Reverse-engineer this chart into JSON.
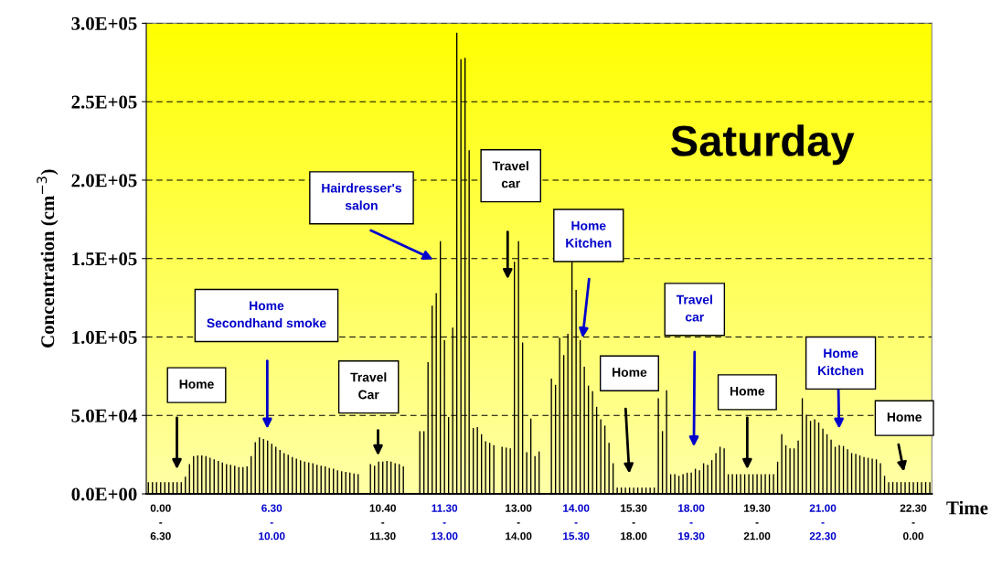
{
  "chart_data": {
    "type": "bar",
    "xlabel": "Time",
    "ylabel": "Concentration (cm$^{−3}$)",
    "categories": [
      null,
      null,
      null,
      "0.00\n-\n6.30",
      null,
      null,
      null,
      null,
      null,
      null,
      null,
      null,
      null,
      null,
      null,
      null,
      null,
      null,
      null,
      null,
      null,
      null,
      null,
      null,
      null,
      null,
      null,
      null,
      null,
      null,
      "6.30\n-\n10.00",
      null,
      null,
      null,
      null,
      null,
      null,
      null,
      null,
      null,
      null,
      null,
      null,
      null,
      null,
      null,
      null,
      null,
      null,
      null,
      null,
      null,
      null,
      null,
      null,
      null,
      null,
      "10.40\n-\n11.30",
      null,
      null,
      null,
      null,
      null,
      null,
      null,
      null,
      null,
      null,
      null,
      null,
      null,
      null,
      "11.30\n-\n13.00",
      null,
      null,
      null,
      null,
      null,
      null,
      null,
      null,
      null,
      null,
      null,
      null,
      null,
      null,
      null,
      null,
      null,
      "13.00\n-\n14.00",
      null,
      null,
      null,
      null,
      null,
      null,
      null,
      null,
      null,
      null,
      null,
      null,
      null,
      "14.00\n-\n15.30",
      null,
      null,
      null,
      null,
      null,
      null,
      null,
      null,
      null,
      null,
      null,
      null,
      null,
      "15.30\n-\n18.00",
      null,
      null,
      null,
      null,
      null,
      null,
      null,
      null,
      null,
      null,
      null,
      null,
      null,
      "18.00\n-\n19.30",
      null,
      null,
      null,
      null,
      null,
      null,
      null,
      null,
      null,
      null,
      null,
      null,
      null,
      null,
      null,
      "19.30\n-\n21.00",
      null,
      null,
      null,
      null,
      null,
      null,
      null,
      null,
      null,
      null,
      null,
      null,
      null,
      null,
      null,
      "21.00\n-\n22.30",
      null,
      null,
      null,
      null,
      null,
      null,
      null,
      null,
      null,
      null,
      null,
      null,
      null,
      null,
      null,
      null,
      null,
      null,
      null,
      null,
      null,
      "22.30\n-\n0.00",
      null,
      null,
      null,
      null
    ],
    "values": [
      7500,
      7500,
      7500,
      7500,
      7500,
      7500,
      7500,
      7500,
      7500,
      11000,
      19000,
      24000,
      24500,
      24500,
      24000,
      23000,
      22000,
      21000,
      20000,
      19000,
      18500,
      18000,
      17000,
      17000,
      17500,
      24000,
      33000,
      36000,
      35000,
      34000,
      32000,
      30000,
      28000,
      26000,
      25000,
      23500,
      22500,
      21500,
      20500,
      20000,
      19500,
      18500,
      18000,
      17500,
      16500,
      16000,
      15000,
      14500,
      14000,
      13500,
      13000,
      12500,
      null,
      null,
      19000,
      18000,
      20500,
      20500,
      21000,
      20500,
      19500,
      19000,
      17500,
      null,
      null,
      null,
      40000,
      40000,
      84000,
      120000,
      128000,
      161000,
      98000,
      49000,
      106000,
      294000,
      277000,
      278000,
      219000,
      42000,
      42500,
      38000,
      33500,
      32500,
      31000,
      null,
      30000,
      29500,
      29000,
      148000,
      161000,
      96500,
      26500,
      48000,
      24000,
      27000,
      null,
      null,
      73500,
      69500,
      99500,
      88500,
      102000,
      148000,
      130000,
      98000,
      81000,
      69000,
      65500,
      55500,
      47500,
      43500,
      32500,
      19500,
      4000,
      4000,
      4000,
      4000,
      4000,
      4000,
      4000,
      4000,
      4000,
      4000,
      61000,
      40000,
      66000,
      12500,
      12500,
      11500,
      12500,
      13500,
      13500,
      16000,
      15000,
      19500,
      18500,
      21500,
      26000,
      30000,
      29000,
      12500,
      12500,
      12500,
      12500,
      12500,
      12500,
      12500,
      12500,
      12500,
      12500,
      12500,
      12500,
      20500,
      38000,
      31000,
      29000,
      29000,
      34000,
      61000,
      50500,
      46500,
      47500,
      45500,
      41500,
      38000,
      34500,
      30000,
      31000,
      30500,
      28500,
      26000,
      25500,
      24500,
      23500,
      23000,
      22500,
      22000,
      19500,
      11500,
      7500,
      7500,
      7500,
      7500,
      7500,
      7500,
      7500,
      7500,
      7500,
      7500,
      7500
    ],
    "color": "#000000",
    "ylim": [
      0,
      300000
    ],
    "yticks": [
      {
        "value": 0,
        "label": "0.0E+00"
      },
      {
        "value": 50000,
        "label": "5.0E+04"
      },
      {
        "value": 100000,
        "label": "1.0E+05"
      },
      {
        "value": 150000,
        "label": "1.5E+05"
      },
      {
        "value": 200000,
        "label": "2.0E+05"
      },
      {
        "value": 250000,
        "label": "2.5E+05"
      },
      {
        "value": 300000,
        "label": "3.0E+05"
      }
    ],
    "grid": "y",
    "legend": false,
    "annotations": [
      "Home",
      "Home\nSecondhand smoke",
      "Travel\nCar",
      "Hairdresser's\nsalon",
      "Travel\ncar",
      "Home\nKitchen",
      "Home",
      "Travel\ncar",
      "Home",
      "Home\nKitchen",
      "Home",
      "Saturday"
    ]
  }
}
